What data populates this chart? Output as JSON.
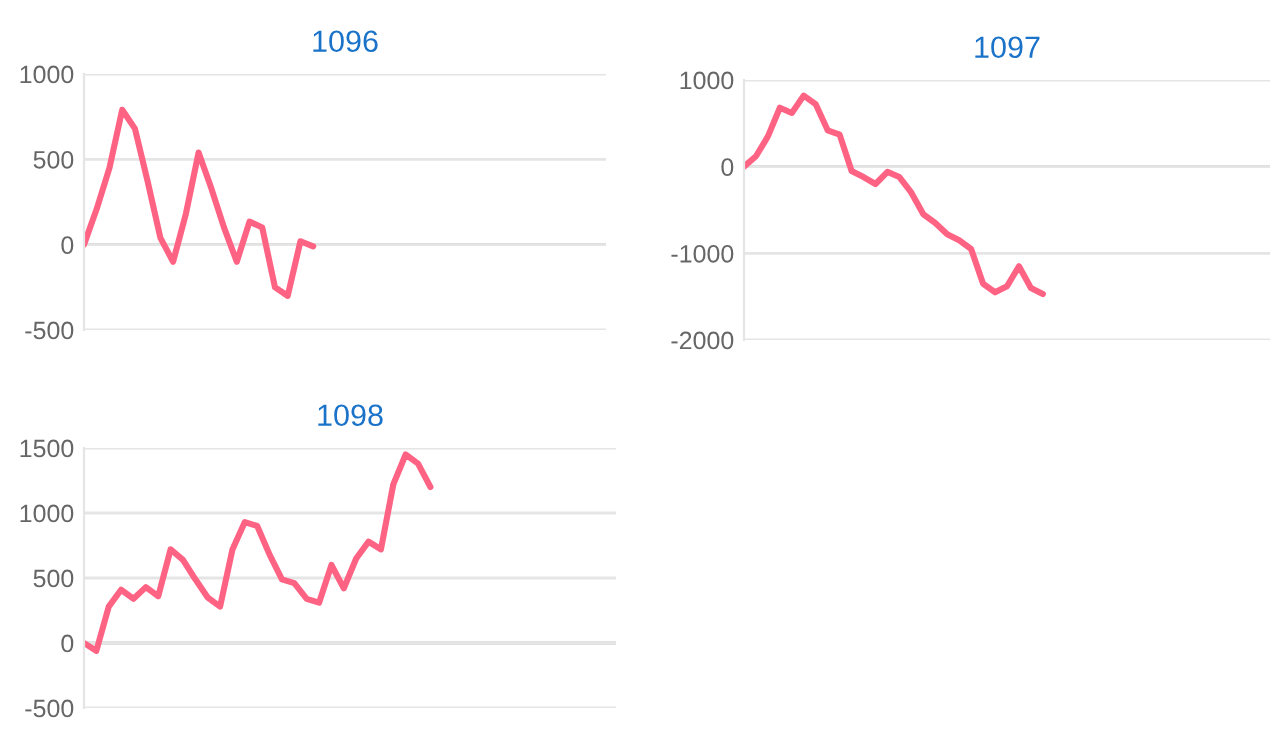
{
  "chart_data": [
    {
      "type": "line",
      "title": "1096",
      "categories": [
        null,
        null,
        null,
        null,
        null,
        null,
        null,
        null,
        null,
        null,
        null,
        null,
        null,
        null,
        null,
        null,
        null,
        null,
        null,
        null,
        null,
        null,
        null,
        null,
        null,
        null,
        null,
        null,
        null,
        null,
        null,
        null,
        null,
        null,
        null,
        null,
        null,
        null,
        null,
        null,
        null,
        null
      ],
      "series": [
        {
          "color": "#ff6384",
          "values": [
            0,
            210,
            450,
            790,
            680,
            370,
            40,
            -100,
            180,
            540,
            330,
            100,
            -100,
            135,
            100,
            -250,
            -300,
            20,
            -10,
            null,
            null,
            null,
            null,
            null,
            null,
            null,
            null,
            null,
            null,
            null,
            null,
            null,
            null,
            null,
            null,
            null,
            null,
            null,
            null,
            null,
            null,
            null
          ]
        }
      ],
      "ylim": [
        -500,
        1000
      ],
      "yticks": [
        -500,
        0,
        500,
        1000
      ],
      "grid": "y",
      "tick_labels": "y",
      "legend": false,
      "marker": "none"
    },
    {
      "type": "line",
      "title": "1097",
      "categories": [
        null,
        null,
        null,
        null,
        null,
        null,
        null,
        null,
        null,
        null,
        null,
        null,
        null,
        null,
        null,
        null,
        null,
        null,
        null,
        null,
        null,
        null,
        null,
        null,
        null,
        null,
        null,
        null,
        null,
        null,
        null,
        null,
        null,
        null,
        null,
        null,
        null,
        null,
        null,
        null,
        null,
        null,
        null,
        null,
        null
      ],
      "series": [
        {
          "color": "#ff6384",
          "values": [
            0,
            120,
            350,
            680,
            620,
            820,
            720,
            420,
            370,
            -50,
            -120,
            -200,
            -60,
            -120,
            -300,
            -550,
            -650,
            -780,
            -850,
            -950,
            -1350,
            -1450,
            -1380,
            -1150,
            -1400,
            -1470,
            null,
            null,
            null,
            null,
            null,
            null,
            null,
            null,
            null,
            null,
            null,
            null,
            null,
            null,
            null,
            null,
            null,
            null,
            null
          ]
        }
      ],
      "ylim": [
        -2000,
        1000
      ],
      "yticks": [
        -2000,
        -1000,
        0,
        1000
      ],
      "grid": "y",
      "tick_labels": "y",
      "legend": false,
      "marker": "none"
    },
    {
      "type": "line",
      "title": "1098",
      "categories": [
        null,
        null,
        null,
        null,
        null,
        null,
        null,
        null,
        null,
        null,
        null,
        null,
        null,
        null,
        null,
        null,
        null,
        null,
        null,
        null,
        null,
        null,
        null,
        null,
        null,
        null,
        null,
        null,
        null,
        null,
        null,
        null,
        null,
        null,
        null,
        null,
        null,
        null,
        null,
        null,
        null,
        null,
        null,
        null
      ],
      "series": [
        {
          "color": "#ff6384",
          "values": [
            0,
            -60,
            280,
            410,
            340,
            430,
            360,
            720,
            640,
            490,
            350,
            280,
            720,
            930,
            900,
            680,
            490,
            460,
            340,
            310,
            600,
            420,
            650,
            780,
            720,
            1220,
            1450,
            1380,
            1200,
            null,
            null,
            null,
            null,
            null,
            null,
            null,
            null,
            null,
            null,
            null,
            null,
            null,
            null,
            null
          ]
        }
      ],
      "ylim": [
        -500,
        1500
      ],
      "yticks": [
        -500,
        0,
        500,
        1000,
        1500
      ],
      "grid": "y",
      "tick_labels": "y",
      "legend": false,
      "marker": "none"
    }
  ]
}
